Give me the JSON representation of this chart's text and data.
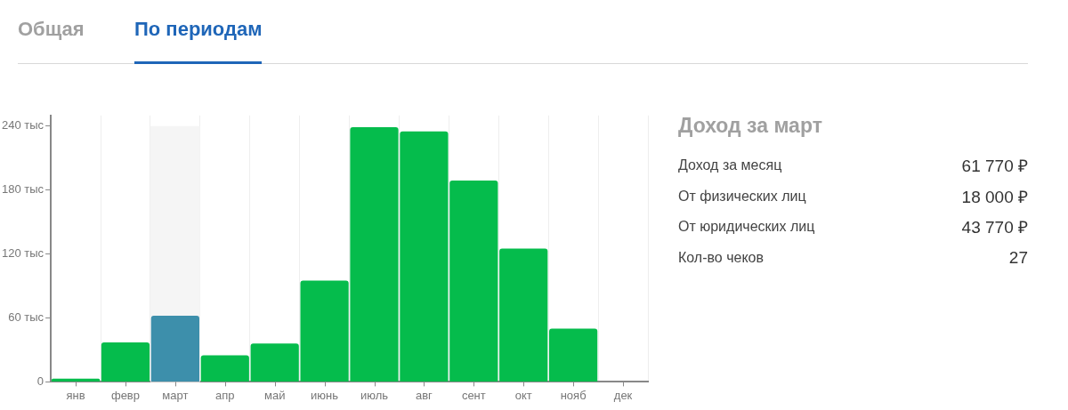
{
  "chart_data": [
    {
      "type": "bar",
      "annotations": [
        "Общая",
        "По периодам"
      ],
      "categories": [
        "янв",
        "февр",
        "март",
        "апр",
        "май",
        "июнь",
        "июль",
        "авг",
        "сент",
        "окт",
        "нояб",
        "дек"
      ],
      "values": [
        3,
        37,
        62,
        25,
        36,
        95,
        239,
        235,
        189,
        125,
        50,
        0
      ],
      "colors": [
        "#05bc4c",
        "#05bc4c",
        "#3d8fab",
        "#05bc4c",
        "#05bc4c",
        "#05bc4c",
        "#05bc4c",
        "#05bc4c",
        "#05bc4c",
        "#05bc4c",
        "#05bc4c",
        "#05bc4c"
      ],
      "ylim": [
        0,
        250
      ],
      "yticks": [
        0,
        {
          "value": 60,
          "label": "60 тыс"
        },
        {
          "value": 120,
          "label": "120 тыс"
        },
        {
          "value": 180,
          "label": "180 тыс"
        },
        {
          "value": 240,
          "label": "240 тыс"
        }
      ],
      "bands": [
        {
          "axis": "x",
          "from": "март",
          "to": "март",
          "color": "#f5f5f5"
        }
      ],
      "grid": "x",
      "legend": false
    },
    {
      "type": "other",
      "title": "Доход за март",
      "categories": [
        "Доход за месяц",
        "От физических лиц",
        "От юридических лиц",
        "Кол-во чеков"
      ],
      "value_labels": [
        "61 770 ₽",
        "18 000 ₽",
        "43 770 ₽",
        "27"
      ]
    }
  ]
}
